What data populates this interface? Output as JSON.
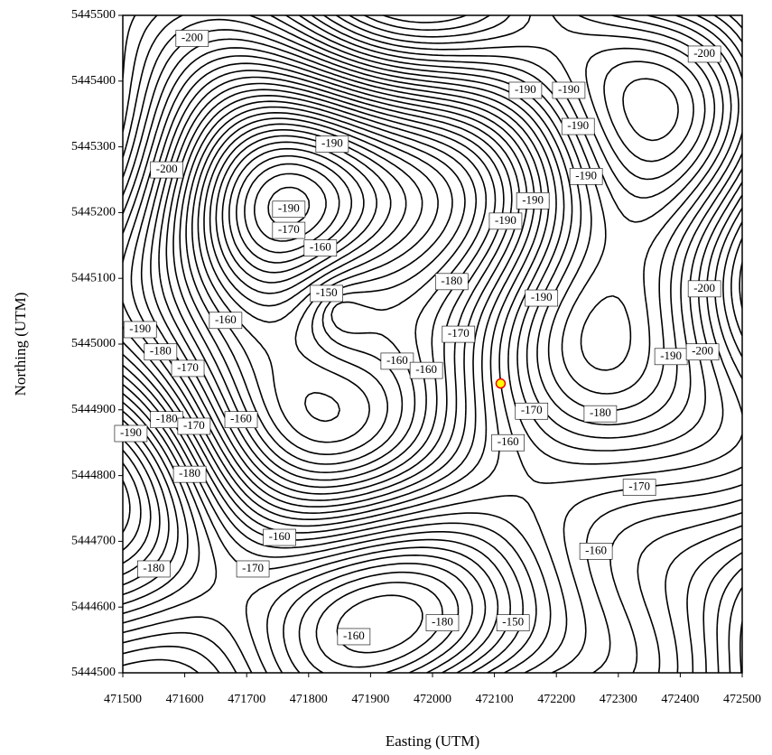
{
  "chart_data": {
    "type": "contour",
    "x_label": "Easting (UTM)",
    "y_label": "Northing (UTM)",
    "xlim": [
      471500,
      472500
    ],
    "ylim": [
      5444500,
      5445500
    ],
    "xticks": [
      471500,
      471600,
      471700,
      471800,
      471900,
      472000,
      472100,
      472200,
      472300,
      472400,
      472500
    ],
    "yticks": [
      5444500,
      5444600,
      5444700,
      5444800,
      5444900,
      5445000,
      5445100,
      5445200,
      5445300,
      5445400,
      5445500
    ],
    "line_color": "#000000",
    "points": [
      {
        "x": 472110,
        "y": 5444940,
        "color": "#ffff00"
      }
    ],
    "contour_labels": [
      {
        "x": 471612,
        "y": 5445465,
        "level": -200
      },
      {
        "x": 471571,
        "y": 5445265,
        "level": -200
      },
      {
        "x": 471838,
        "y": 5445304,
        "level": -190
      },
      {
        "x": 472150,
        "y": 5445386,
        "level": -190
      },
      {
        "x": 472220,
        "y": 5445386,
        "level": -190
      },
      {
        "x": 472235,
        "y": 5445331,
        "level": -190
      },
      {
        "x": 472248,
        "y": 5445255,
        "level": -190
      },
      {
        "x": 472162,
        "y": 5445218,
        "level": -190
      },
      {
        "x": 472118,
        "y": 5445187,
        "level": -190
      },
      {
        "x": 472439,
        "y": 5445441,
        "level": -200
      },
      {
        "x": 471768,
        "y": 5445205,
        "level": -190
      },
      {
        "x": 471768,
        "y": 5445173,
        "level": -170
      },
      {
        "x": 471819,
        "y": 5445146,
        "level": -160
      },
      {
        "x": 471829,
        "y": 5445077,
        "level": -150
      },
      {
        "x": 472031,
        "y": 5445095,
        "level": -180
      },
      {
        "x": 471666,
        "y": 5445036,
        "level": -160
      },
      {
        "x": 471528,
        "y": 5445022,
        "level": -190
      },
      {
        "x": 471561,
        "y": 5444988,
        "level": -180
      },
      {
        "x": 471605,
        "y": 5444963,
        "level": -170
      },
      {
        "x": 472042,
        "y": 5445015,
        "level": -170
      },
      {
        "x": 471943,
        "y": 5444974,
        "level": -160
      },
      {
        "x": 471990,
        "y": 5444960,
        "level": -160
      },
      {
        "x": 472176,
        "y": 5445070,
        "level": -190
      },
      {
        "x": 472439,
        "y": 5445084,
        "level": -200
      },
      {
        "x": 472385,
        "y": 5444981,
        "level": -190
      },
      {
        "x": 472436,
        "y": 5444988,
        "level": -200
      },
      {
        "x": 472160,
        "y": 5444898,
        "level": -170
      },
      {
        "x": 472122,
        "y": 5444850,
        "level": -160
      },
      {
        "x": 472271,
        "y": 5444894,
        "level": -180
      },
      {
        "x": 471571,
        "y": 5444885,
        "level": -180
      },
      {
        "x": 471615,
        "y": 5444875,
        "level": -170
      },
      {
        "x": 471513,
        "y": 5444864,
        "level": -190
      },
      {
        "x": 471691,
        "y": 5444885,
        "level": -160
      },
      {
        "x": 471608,
        "y": 5444802,
        "level": -180
      },
      {
        "x": 472334,
        "y": 5444782,
        "level": -170
      },
      {
        "x": 471753,
        "y": 5444706,
        "level": -160
      },
      {
        "x": 472264,
        "y": 5444685,
        "level": -160
      },
      {
        "x": 471710,
        "y": 5444658,
        "level": -170
      },
      {
        "x": 471550,
        "y": 5444658,
        "level": -180
      },
      {
        "x": 472016,
        "y": 5444576,
        "level": -180
      },
      {
        "x": 472130,
        "y": 5444576,
        "level": -150
      },
      {
        "x": 471873,
        "y": 5444555,
        "level": -160
      }
    ]
  }
}
